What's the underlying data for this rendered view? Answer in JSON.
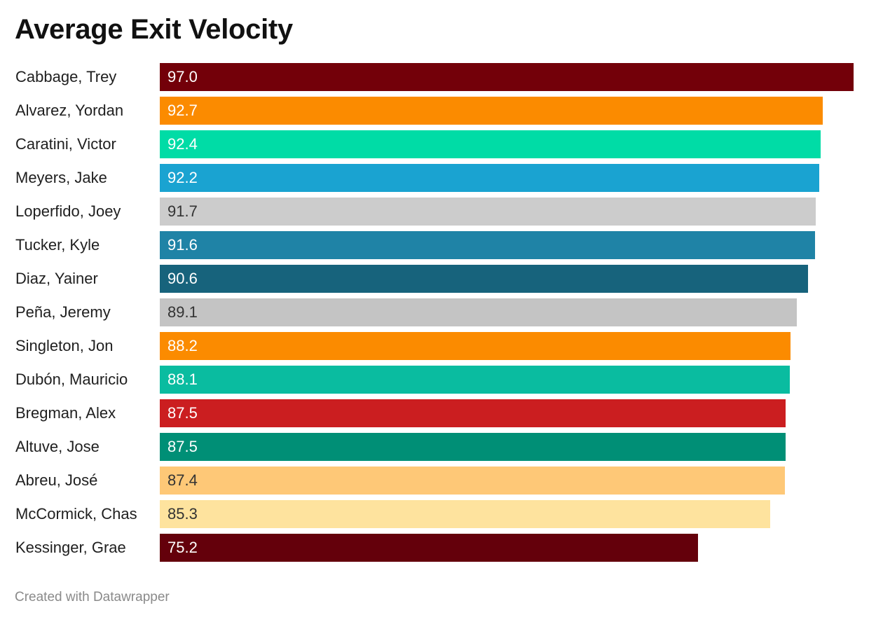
{
  "chart_data": {
    "type": "bar",
    "orientation": "horizontal",
    "title": "Average Exit Velocity",
    "categories": [
      "Cabbage, Trey",
      "Alvarez, Yordan",
      "Caratini, Victor",
      "Meyers, Jake",
      "Loperfido, Joey",
      "Tucker, Kyle",
      "Diaz, Yainer",
      "Peña, Jeremy",
      "Singleton, Jon",
      "Dubón, Mauricio",
      "Bregman, Alex",
      "Altuve, Jose",
      "Abreu, José",
      "McCormick, Chas",
      "Kessinger, Grae"
    ],
    "values": [
      97.0,
      92.7,
      92.4,
      92.2,
      91.7,
      91.6,
      90.6,
      89.1,
      88.2,
      88.1,
      87.5,
      87.5,
      87.4,
      85.3,
      75.2
    ],
    "value_labels": [
      "97.0",
      "92.7",
      "92.4",
      "92.2",
      "91.7",
      "91.6",
      "90.6",
      "89.1",
      "88.2",
      "88.1",
      "87.5",
      "87.5",
      "87.4",
      "85.3",
      "75.2"
    ],
    "colors": [
      "#730009",
      "#fb8b00",
      "#00dca6",
      "#1aa3d1",
      "#cccccc",
      "#1f83a6",
      "#17637c",
      "#c4c4c4",
      "#fb8b00",
      "#0abca0",
      "#cb1e20",
      "#008f76",
      "#fec877",
      "#fee39e",
      "#64000b"
    ],
    "label_colors": [
      "#ffffff",
      "#ffffff",
      "#ffffff",
      "#ffffff",
      "#333333",
      "#ffffff",
      "#ffffff",
      "#333333",
      "#ffffff",
      "#ffffff",
      "#ffffff",
      "#ffffff",
      "#333333",
      "#333333",
      "#ffffff"
    ],
    "xlim": [
      0,
      97.0
    ],
    "grid": false,
    "legend": "none"
  },
  "footer": {
    "credit": "Created with Datawrapper"
  }
}
